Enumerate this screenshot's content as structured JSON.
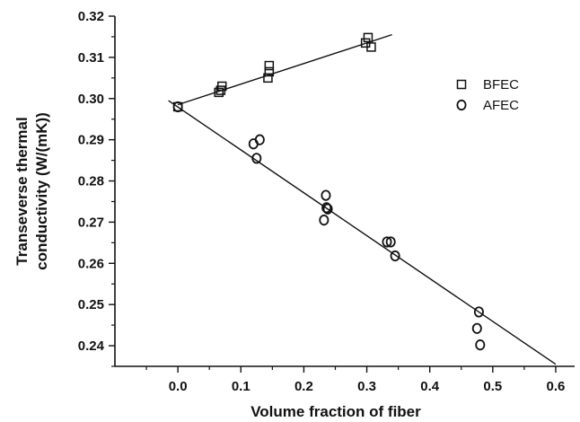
{
  "chart_data": {
    "type": "scatter",
    "xlabel": "Volume fraction of  fiber",
    "ylabel_lines": [
      "Transeverse thermal",
      "conductivity (W/(mK))"
    ],
    "xlim": [
      -0.1,
      0.63
    ],
    "ylim": [
      0.235,
      0.32
    ],
    "x_ticks": [
      0.0,
      0.1,
      0.2,
      0.3,
      0.4,
      0.5,
      0.6
    ],
    "x_tick_labels": [
      "0.0",
      "0.1",
      "0.2",
      "0.3",
      "0.4",
      "0.5",
      "0.6"
    ],
    "y_ticks": [
      0.24,
      0.25,
      0.26,
      0.27,
      0.28,
      0.29,
      0.3,
      0.31,
      0.32
    ],
    "y_tick_labels": [
      "0.24",
      "0.25",
      "0.26",
      "0.27",
      "0.28",
      "0.29",
      "0.30",
      "0.31",
      "0.32"
    ],
    "legend_position": "right",
    "series": [
      {
        "name": "BFEC",
        "marker": "square",
        "points": [
          [
            0.0,
            0.298
          ],
          [
            0.065,
            0.3015
          ],
          [
            0.068,
            0.302
          ],
          [
            0.07,
            0.303
          ],
          [
            0.143,
            0.305
          ],
          [
            0.145,
            0.3065
          ],
          [
            0.145,
            0.308
          ],
          [
            0.298,
            0.3135
          ],
          [
            0.302,
            0.3148
          ],
          [
            0.307,
            0.3125
          ]
        ],
        "fit_line": [
          [
            0.0,
            0.2985
          ],
          [
            0.34,
            0.3155
          ]
        ]
      },
      {
        "name": "AFEC",
        "marker": "circle",
        "points": [
          [
            0.0,
            0.298
          ],
          [
            0.12,
            0.289
          ],
          [
            0.125,
            0.2855
          ],
          [
            0.13,
            0.29
          ],
          [
            0.232,
            0.2705
          ],
          [
            0.235,
            0.2765
          ],
          [
            0.236,
            0.2735
          ],
          [
            0.238,
            0.2732
          ],
          [
            0.332,
            0.2652
          ],
          [
            0.338,
            0.2652
          ],
          [
            0.345,
            0.2618
          ],
          [
            0.475,
            0.2442
          ],
          [
            0.478,
            0.2482
          ],
          [
            0.48,
            0.2402
          ]
        ],
        "fit_line": [
          [
            -0.015,
            0.2995
          ],
          [
            0.6,
            0.2355
          ]
        ]
      }
    ]
  }
}
